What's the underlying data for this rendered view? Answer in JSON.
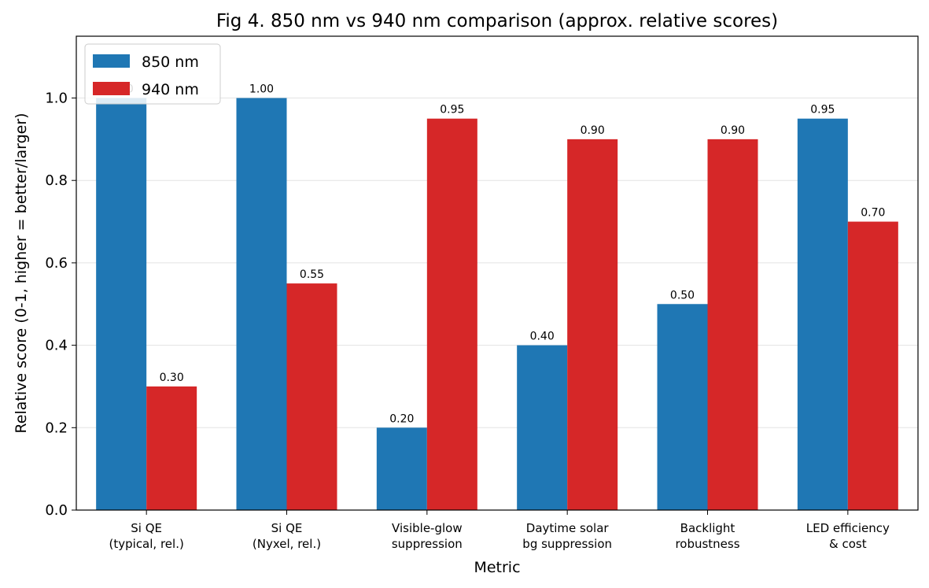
{
  "chart_data": {
    "type": "bar",
    "title": "Fig 4. 850 nm vs 940 nm comparison (approx. relative scores)",
    "xlabel": "Metric",
    "ylabel": "Relative score (0-1, higher = better/larger)",
    "ylim": [
      0,
      1.15
    ],
    "yticks": [
      "0.0",
      "0.2",
      "0.4",
      "0.6",
      "0.8",
      "1.0"
    ],
    "grid": "horizontal",
    "legend": "top-left",
    "categories": [
      [
        "Si QE",
        "(typical, rel.)"
      ],
      [
        "Si QE",
        "(Nyxel, rel.)"
      ],
      [
        "Visible-glow",
        "suppression"
      ],
      [
        "Daytime solar",
        "bg suppression"
      ],
      [
        "Backlight",
        "robustness"
      ],
      [
        "LED efficiency",
        "& cost"
      ]
    ],
    "series": [
      {
        "name": "850 nm",
        "color": "#1f77b4",
        "values": [
          1.0,
          1.0,
          0.2,
          0.4,
          0.5,
          0.95
        ],
        "labels": [
          "1.00",
          "1.00",
          "0.20",
          "0.40",
          "0.50",
          "0.95"
        ]
      },
      {
        "name": "940 nm",
        "color": "#d62728",
        "values": [
          0.3,
          0.55,
          0.95,
          0.9,
          0.9,
          0.7
        ],
        "labels": [
          "0.30",
          "0.55",
          "0.95",
          "0.90",
          "0.90",
          "0.70"
        ]
      }
    ]
  }
}
